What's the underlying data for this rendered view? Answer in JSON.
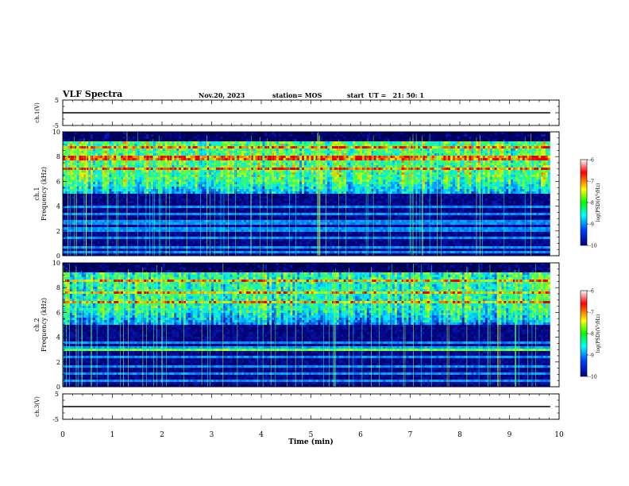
{
  "header": {
    "title": "VLF Spectra",
    "date": "Nov.20, 2023",
    "station": "station= MOS",
    "start": "start  UT =   21: 50: 1"
  },
  "chart_data": [
    {
      "type": "line",
      "ylabel": "ch.1(V)",
      "ylim": [
        -5,
        5
      ],
      "yticks": [
        "5",
        "-5"
      ],
      "series": [
        {
          "x": [
            0,
            9.82
          ],
          "y": [
            0,
            0
          ]
        }
      ]
    },
    {
      "type": "heatmap",
      "ylabel": "ch.1\nFrequency (kHz)",
      "ylim": [
        0,
        10
      ],
      "yticks": [
        "0",
        "2",
        "4",
        "6",
        "8",
        "10"
      ],
      "xlim": [
        0,
        10
      ],
      "colorbar": {
        "label": "log(PSD)(V²/Hz)",
        "range": [
          -10,
          -6
        ],
        "ticks": [
          "-6",
          "-7",
          "-8",
          "-9",
          "-10"
        ]
      }
    },
    {
      "type": "heatmap",
      "ylabel": "ch.2\nFrequency (kHz)",
      "ylim": [
        0,
        10
      ],
      "yticks": [
        "0",
        "2",
        "4",
        "6",
        "8",
        "10"
      ],
      "xlim": [
        0,
        10
      ],
      "colorbar": {
        "label": "log(PSD)(V²/Hz)",
        "range": [
          -10,
          -6
        ],
        "ticks": [
          "-6",
          "-7",
          "-8",
          "-9",
          "-10"
        ]
      }
    },
    {
      "type": "line",
      "ylabel": "ch.3(V)",
      "ylim": [
        -5,
        5
      ],
      "yticks": [
        "5",
        "-5"
      ],
      "series": [
        {
          "x": [
            0,
            9.82
          ],
          "y": [
            0,
            0
          ]
        }
      ]
    }
  ],
  "xaxis": {
    "label": "Time (min)",
    "ticks": [
      "0",
      "1",
      "2",
      "3",
      "4",
      "5",
      "6",
      "7",
      "8",
      "9",
      "10"
    ],
    "xlim": [
      0,
      10
    ],
    "data_end": 9.82
  },
  "colors": {
    "spectro_dark": "#000033",
    "spectro_low": "#0b1f9a",
    "spectro_mid": "#00c8ff",
    "spectro_high": "#40ff40",
    "spectro_peak": "#ff2000"
  }
}
